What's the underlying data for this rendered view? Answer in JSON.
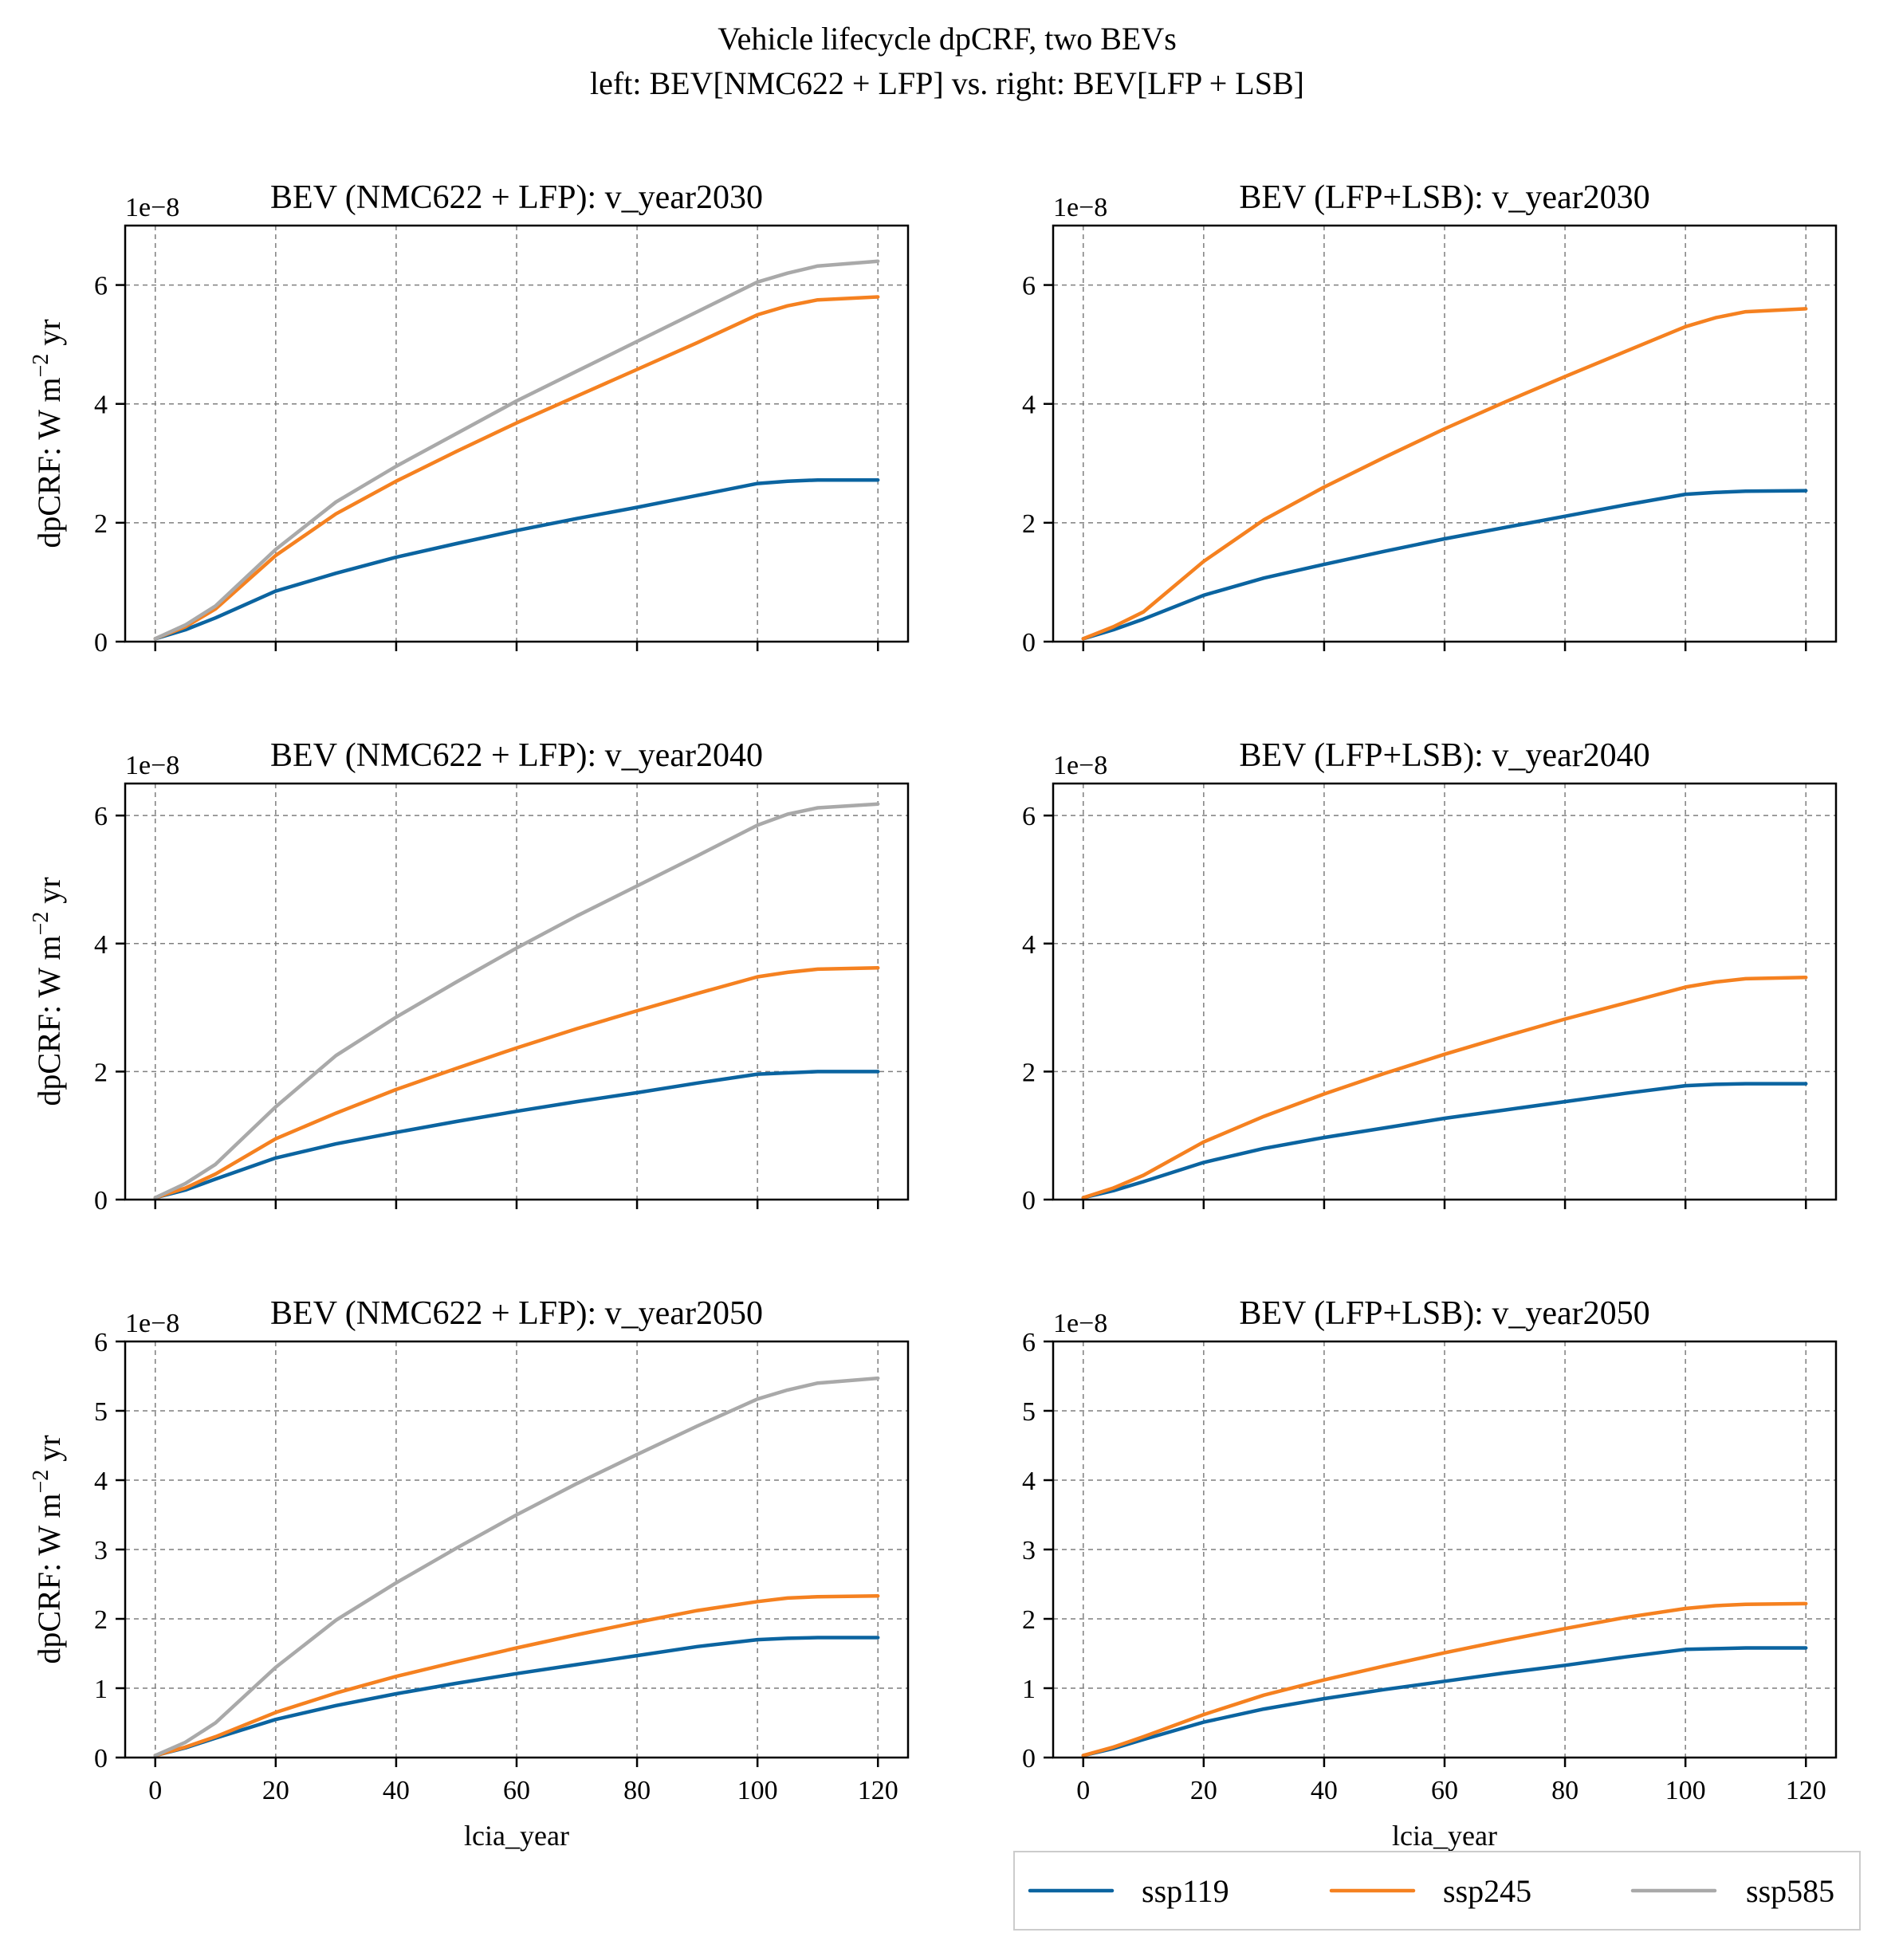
{
  "figure": {
    "title_line1": "Vehicle lifecycle dpCRF, two BEVs",
    "title_line2": "left: BEV[NMC622 + LFP] vs. right: BEV[LFP + LSB]"
  },
  "legend": {
    "items": [
      {
        "name": "ssp119",
        "color": "#0b64a0"
      },
      {
        "name": "ssp245",
        "color": "#f58120"
      },
      {
        "name": "ssp585",
        "color": "#a9a9a9"
      }
    ]
  },
  "chart_data": [
    {
      "type": "line",
      "title": "BEV (NMC622 + LFP): v_year2030",
      "xlabel": "",
      "ylabel": "dpCRF: W m−2 yr",
      "y_exponent": "1e−8",
      "xlim": [
        -5,
        125
      ],
      "ylim": [
        0,
        7.0
      ],
      "xticks": [
        0,
        20,
        40,
        60,
        80,
        100,
        120
      ],
      "yticks": [
        0,
        2,
        4,
        6
      ],
      "show_xtick_labels": false,
      "grid": true,
      "x": [
        0,
        5,
        10,
        20,
        30,
        40,
        50,
        60,
        70,
        80,
        90,
        100,
        105,
        110,
        120
      ],
      "series": [
        {
          "name": "ssp119",
          "values": [
            0.05,
            0.2,
            0.4,
            0.85,
            1.15,
            1.42,
            1.65,
            1.87,
            2.07,
            2.26,
            2.46,
            2.66,
            2.7,
            2.72,
            2.72
          ]
        },
        {
          "name": "ssp245",
          "values": [
            0.05,
            0.25,
            0.55,
            1.45,
            2.15,
            2.7,
            3.2,
            3.68,
            4.13,
            4.58,
            5.03,
            5.5,
            5.65,
            5.75,
            5.8
          ]
        },
        {
          "name": "ssp585",
          "values": [
            0.05,
            0.28,
            0.6,
            1.55,
            2.35,
            2.95,
            3.5,
            4.05,
            4.55,
            5.05,
            5.55,
            6.05,
            6.2,
            6.32,
            6.4
          ]
        }
      ]
    },
    {
      "type": "line",
      "title": "BEV (LFP+LSB): v_year2030",
      "xlabel": "",
      "ylabel": "",
      "y_exponent": "1e−8",
      "xlim": [
        -5,
        125
      ],
      "ylim": [
        0,
        7.0
      ],
      "xticks": [
        0,
        20,
        40,
        60,
        80,
        100,
        120
      ],
      "yticks": [
        0,
        2,
        4,
        6
      ],
      "show_xtick_labels": false,
      "grid": true,
      "x": [
        0,
        5,
        10,
        20,
        30,
        40,
        50,
        60,
        70,
        80,
        90,
        100,
        105,
        110,
        120
      ],
      "series": [
        {
          "name": "ssp119",
          "values": [
            0.05,
            0.2,
            0.38,
            0.78,
            1.07,
            1.3,
            1.52,
            1.73,
            1.92,
            2.11,
            2.3,
            2.48,
            2.51,
            2.53,
            2.54
          ]
        },
        {
          "name": "ssp245",
          "values": [
            0.05,
            0.25,
            0.5,
            1.35,
            2.05,
            2.6,
            3.1,
            3.58,
            4.03,
            4.46,
            4.88,
            5.3,
            5.45,
            5.55,
            5.6
          ]
        }
      ]
    },
    {
      "type": "line",
      "title": "BEV (NMC622 + LFP): v_year2040",
      "xlabel": "",
      "ylabel": "dpCRF: W m−2 yr",
      "y_exponent": "1e−8",
      "xlim": [
        -5,
        125
      ],
      "ylim": [
        0,
        6.5
      ],
      "xticks": [
        0,
        20,
        40,
        60,
        80,
        100,
        120
      ],
      "yticks": [
        0,
        2,
        4,
        6
      ],
      "show_xtick_labels": false,
      "grid": true,
      "x": [
        0,
        5,
        10,
        20,
        30,
        40,
        50,
        60,
        70,
        80,
        90,
        100,
        105,
        110,
        120
      ],
      "series": [
        {
          "name": "ssp119",
          "values": [
            0.03,
            0.15,
            0.32,
            0.65,
            0.87,
            1.05,
            1.22,
            1.38,
            1.53,
            1.67,
            1.82,
            1.96,
            1.98,
            2.0,
            2.0
          ]
        },
        {
          "name": "ssp245",
          "values": [
            0.03,
            0.18,
            0.4,
            0.95,
            1.35,
            1.72,
            2.05,
            2.37,
            2.67,
            2.95,
            3.22,
            3.48,
            3.55,
            3.6,
            3.62
          ]
        },
        {
          "name": "ssp585",
          "values": [
            0.03,
            0.25,
            0.55,
            1.45,
            2.25,
            2.85,
            3.4,
            3.93,
            4.43,
            4.9,
            5.37,
            5.85,
            6.02,
            6.12,
            6.18
          ]
        }
      ]
    },
    {
      "type": "line",
      "title": "BEV (LFP+LSB): v_year2040",
      "xlabel": "",
      "ylabel": "",
      "y_exponent": "1e−8",
      "xlim": [
        -5,
        125
      ],
      "ylim": [
        0,
        6.5
      ],
      "xticks": [
        0,
        20,
        40,
        60,
        80,
        100,
        120
      ],
      "yticks": [
        0,
        2,
        4,
        6
      ],
      "show_xtick_labels": false,
      "grid": true,
      "x": [
        0,
        5,
        10,
        20,
        30,
        40,
        50,
        60,
        70,
        80,
        90,
        100,
        105,
        110,
        120
      ],
      "series": [
        {
          "name": "ssp119",
          "values": [
            0.03,
            0.14,
            0.28,
            0.58,
            0.8,
            0.97,
            1.12,
            1.27,
            1.4,
            1.53,
            1.66,
            1.78,
            1.8,
            1.81,
            1.81
          ]
        },
        {
          "name": "ssp245",
          "values": [
            0.03,
            0.18,
            0.38,
            0.9,
            1.3,
            1.65,
            1.97,
            2.27,
            2.55,
            2.82,
            3.07,
            3.32,
            3.4,
            3.45,
            3.47
          ]
        }
      ]
    },
    {
      "type": "line",
      "title": "BEV (NMC622 + LFP): v_year2050",
      "xlabel": "lcia_year",
      "ylabel": "dpCRF: W m−2 yr",
      "y_exponent": "1e−8",
      "xlim": [
        -5,
        125
      ],
      "ylim": [
        0,
        6
      ],
      "xticks": [
        0,
        20,
        40,
        60,
        80,
        100,
        120
      ],
      "yticks": [
        0,
        1,
        2,
        3,
        4,
        5,
        6
      ],
      "show_xtick_labels": true,
      "grid": true,
      "x": [
        0,
        5,
        10,
        20,
        30,
        40,
        50,
        60,
        70,
        80,
        90,
        100,
        105,
        110,
        120
      ],
      "series": [
        {
          "name": "ssp119",
          "values": [
            0.03,
            0.14,
            0.28,
            0.55,
            0.75,
            0.92,
            1.07,
            1.21,
            1.34,
            1.47,
            1.6,
            1.7,
            1.72,
            1.73,
            1.73
          ]
        },
        {
          "name": "ssp245",
          "values": [
            0.03,
            0.15,
            0.3,
            0.65,
            0.93,
            1.17,
            1.38,
            1.58,
            1.77,
            1.95,
            2.12,
            2.25,
            2.3,
            2.32,
            2.33
          ]
        },
        {
          "name": "ssp585",
          "values": [
            0.03,
            0.22,
            0.5,
            1.3,
            1.98,
            2.52,
            3.02,
            3.5,
            3.95,
            4.37,
            4.78,
            5.17,
            5.3,
            5.4,
            5.47
          ]
        }
      ]
    },
    {
      "type": "line",
      "title": "BEV (LFP+LSB): v_year2050",
      "xlabel": "lcia_year",
      "ylabel": "",
      "y_exponent": "1e−8",
      "xlim": [
        -5,
        125
      ],
      "ylim": [
        0,
        6
      ],
      "xticks": [
        0,
        20,
        40,
        60,
        80,
        100,
        120
      ],
      "yticks": [
        0,
        1,
        2,
        3,
        4,
        5,
        6
      ],
      "show_xtick_labels": true,
      "grid": true,
      "x": [
        0,
        5,
        10,
        20,
        30,
        40,
        50,
        60,
        70,
        80,
        90,
        100,
        105,
        110,
        120
      ],
      "series": [
        {
          "name": "ssp119",
          "values": [
            0.03,
            0.13,
            0.26,
            0.51,
            0.7,
            0.85,
            0.98,
            1.1,
            1.22,
            1.33,
            1.45,
            1.56,
            1.57,
            1.58,
            1.58
          ]
        },
        {
          "name": "ssp245",
          "values": [
            0.03,
            0.15,
            0.3,
            0.62,
            0.9,
            1.12,
            1.32,
            1.51,
            1.69,
            1.86,
            2.02,
            2.15,
            2.19,
            2.21,
            2.22
          ]
        }
      ]
    }
  ]
}
